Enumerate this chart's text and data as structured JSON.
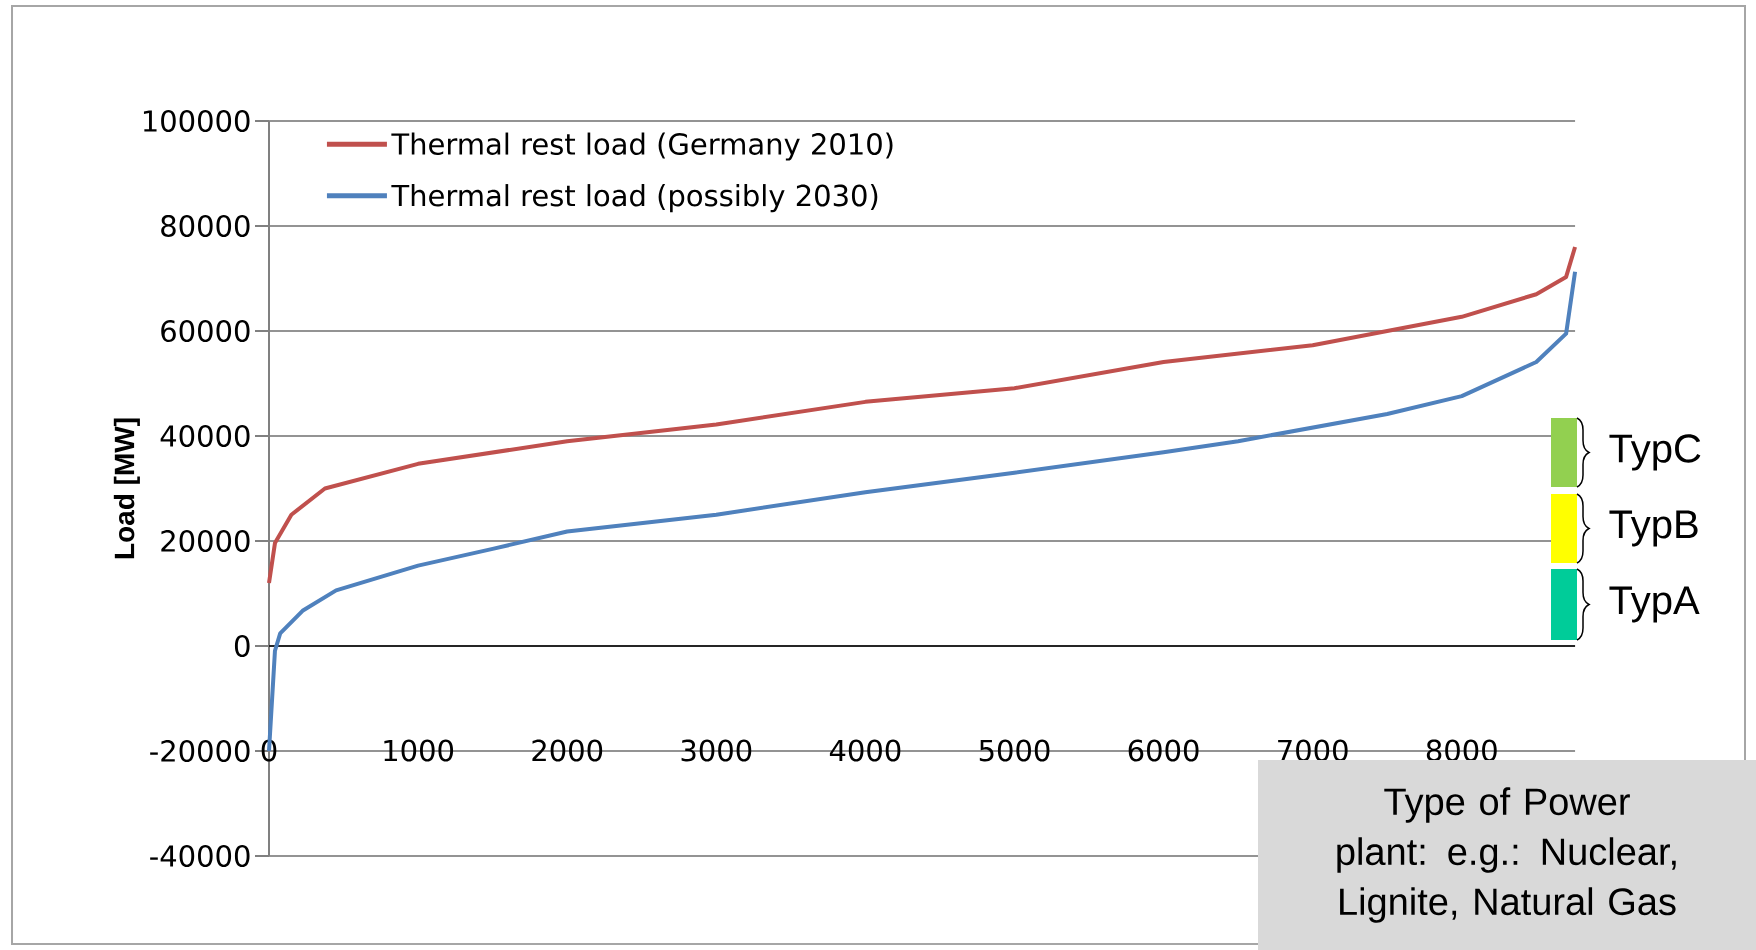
{
  "chart_data": {
    "type": "line",
    "xlabel": null,
    "ylabel": "Load [MW]",
    "series": [
      {
        "name": "Thermal rest load (Germany 2010)",
        "color": "#c0504d",
        "x": [
          0,
          40,
          150,
          375,
          1000,
          2000,
          3000,
          4000,
          5000,
          6000,
          7000,
          7500,
          8000,
          8500,
          8700,
          8760
        ],
        "values": [
          12000,
          19600,
          25000,
          30000,
          34700,
          39000,
          42200,
          46500,
          49100,
          54100,
          57300,
          60000,
          62700,
          67000,
          70300,
          76000
        ]
      },
      {
        "name": "Thermal rest load (possibly 2030)",
        "color": "#4f81bd",
        "x": [
          0,
          40,
          75,
          225,
          450,
          1000,
          1500,
          2000,
          3000,
          4000,
          5000,
          6000,
          6500,
          7000,
          7500,
          8000,
          8500,
          8700,
          8760
        ],
        "values": [
          -20000,
          -900,
          2400,
          6700,
          10600,
          15300,
          18500,
          21800,
          25000,
          29300,
          33000,
          36900,
          39000,
          41600,
          44200,
          47600,
          54100,
          59500,
          71300
        ]
      }
    ],
    "xlim": [
      0,
      8760
    ],
    "ylim": [
      -40000,
      100000
    ],
    "xticks": [
      0,
      1000,
      2000,
      3000,
      4000,
      5000,
      6000,
      7000,
      8000
    ],
    "yticks": [
      -40000,
      -20000,
      0,
      20000,
      40000,
      60000,
      80000,
      100000
    ],
    "grid": "y",
    "legend": "top left",
    "marker": "none",
    "line_style": "solid",
    "annotations": [
      "TypC",
      "TypB",
      "TypA",
      "Type of Power plant: e.g.: Nuclear, Lignite, Natural Gas"
    ]
  }
}
